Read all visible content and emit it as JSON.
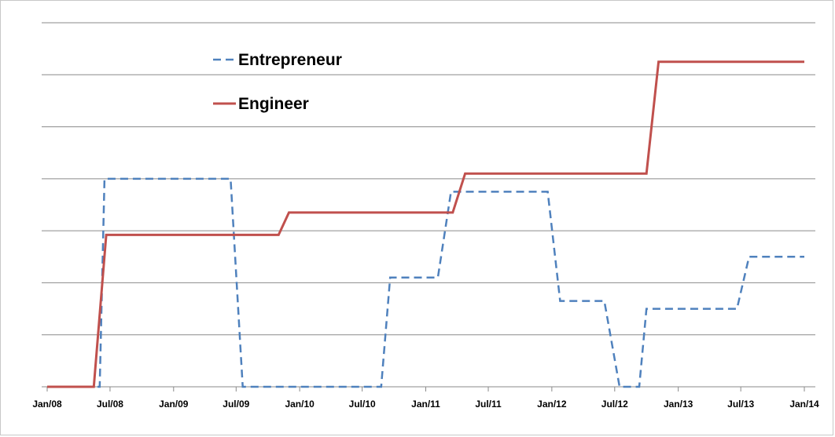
{
  "chart_data": {
    "type": "line",
    "title": "",
    "xlabel": "",
    "ylabel": "",
    "x_tick_labels": [
      "Jan/08",
      "Jul/08",
      "Jan/09",
      "Jul/09",
      "Jan/10",
      "Jul/10",
      "Jan/11",
      "Jul/11",
      "Jan/12",
      "Jul/12",
      "Jan/13",
      "Jul/13",
      "Jan/14"
    ],
    "ylim": [
      0,
      7
    ],
    "y_tick_labels_shown": false,
    "grid": "horizontal",
    "legend_placement": "top-left",
    "series": [
      {
        "name": "Entrepreneur",
        "color": "#4f81bd",
        "style": "dashed",
        "points": [
          [
            "2008-01-01",
            0
          ],
          [
            "2008-06-01",
            0
          ],
          [
            "2008-06-15",
            4
          ],
          [
            "2009-06-15",
            4
          ],
          [
            "2009-07-20",
            0
          ],
          [
            "2010-08-25",
            0
          ],
          [
            "2010-09-20",
            2.1
          ],
          [
            "2011-02-05",
            2.1
          ],
          [
            "2011-03-15",
            3.75
          ],
          [
            "2011-12-20",
            3.75
          ],
          [
            "2012-01-25",
            1.65
          ],
          [
            "2012-06-01",
            1.65
          ],
          [
            "2012-07-15",
            0
          ],
          [
            "2012-09-10",
            0
          ],
          [
            "2012-10-01",
            1.5
          ],
          [
            "2013-06-20",
            1.5
          ],
          [
            "2013-07-25",
            2.5
          ],
          [
            "2014-01-01",
            2.5
          ]
        ]
      },
      {
        "name": "Engineer",
        "color": "#c0504d",
        "style": "solid",
        "points": [
          [
            "2008-01-01",
            0
          ],
          [
            "2008-05-15",
            0
          ],
          [
            "2008-06-20",
            2.92
          ],
          [
            "2009-11-01",
            2.92
          ],
          [
            "2009-12-01",
            3.35
          ],
          [
            "2011-03-20",
            3.35
          ],
          [
            "2011-04-25",
            4.1
          ],
          [
            "2012-10-01",
            4.1
          ],
          [
            "2012-11-05",
            6.25
          ],
          [
            "2014-01-01",
            6.25
          ]
        ]
      }
    ]
  }
}
